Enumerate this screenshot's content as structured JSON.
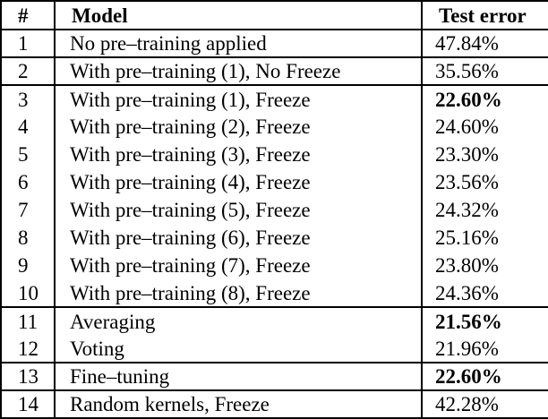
{
  "table": {
    "headers": [
      "#",
      "Model",
      "Test error"
    ],
    "rows": [
      {
        "num": "1",
        "model": "No pre–training applied",
        "error": "47.84%",
        "bold": false,
        "group_start": false
      },
      {
        "num": "2",
        "model": "With pre–training (1), No Freeze",
        "error": "35.56%",
        "bold": false,
        "group_start": true
      },
      {
        "num": "3",
        "model": "With pre–training (1), Freeze",
        "error": "22.60%",
        "bold": true,
        "group_start": true
      },
      {
        "num": "4",
        "model": "With pre–training (2), Freeze",
        "error": "24.60%",
        "bold": false,
        "group_start": false
      },
      {
        "num": "5",
        "model": "With pre–training (3), Freeze",
        "error": "23.30%",
        "bold": false,
        "group_start": false
      },
      {
        "num": "6",
        "model": "With pre–training (4), Freeze",
        "error": "23.56%",
        "bold": false,
        "group_start": false
      },
      {
        "num": "7",
        "model": "With pre–training (5), Freeze",
        "error": "24.32%",
        "bold": false,
        "group_start": false
      },
      {
        "num": "8",
        "model": "With pre–training (6), Freeze",
        "error": "25.16%",
        "bold": false,
        "group_start": false
      },
      {
        "num": "9",
        "model": "With pre–training (7), Freeze",
        "error": "23.80%",
        "bold": false,
        "group_start": false
      },
      {
        "num": "10",
        "model": "With pre–training (8), Freeze",
        "error": "24.36%",
        "bold": false,
        "group_start": false
      },
      {
        "num": "11",
        "model": "Averaging",
        "error": "21.56%",
        "bold": true,
        "group_start": true
      },
      {
        "num": "12",
        "model": "Voting",
        "error": "21.96%",
        "bold": false,
        "group_start": false
      },
      {
        "num": "13",
        "model": "Fine–tuning",
        "error": "22.60%",
        "bold": true,
        "group_start": true
      },
      {
        "num": "14",
        "model": "Random kernels, Freeze",
        "error": "42.28%",
        "bold": false,
        "group_start": true
      }
    ]
  }
}
